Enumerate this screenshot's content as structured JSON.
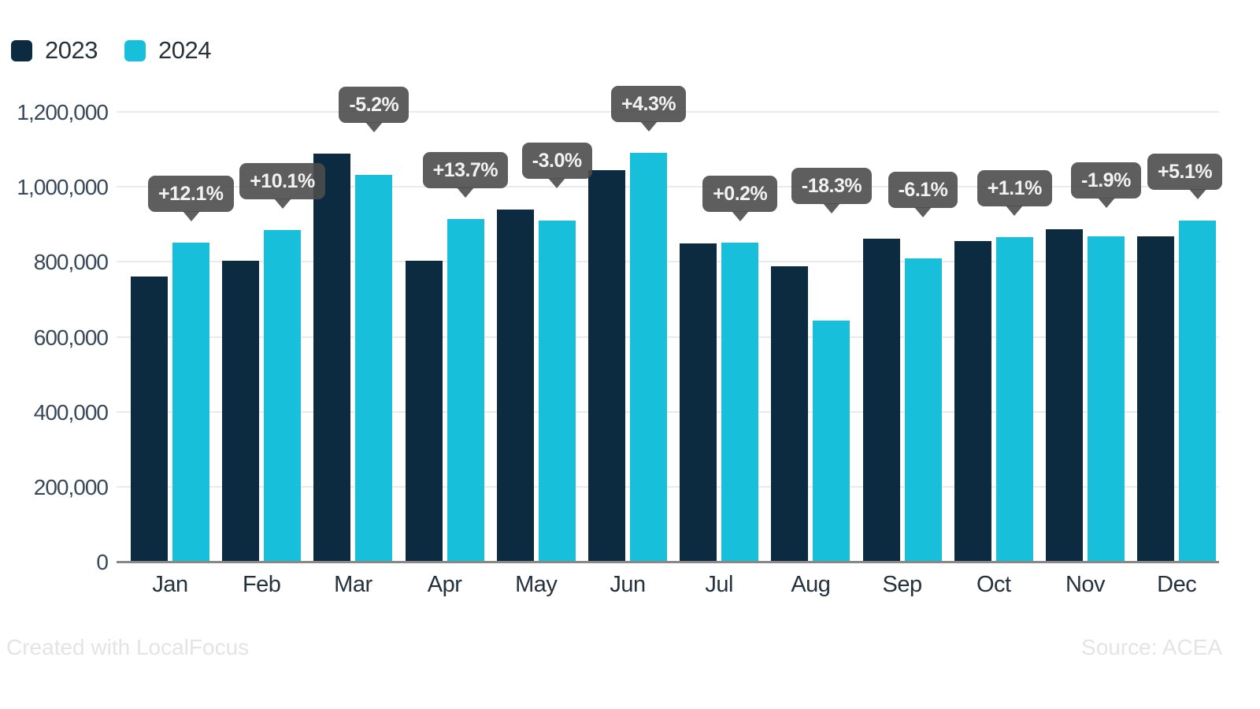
{
  "legend": {
    "items": [
      {
        "label": "2023",
        "color": "#0d2b40"
      },
      {
        "label": "2024",
        "color": "#18bfda"
      }
    ]
  },
  "footer": {
    "credit": "Created with LocalFocus",
    "source": "Source: ACEA"
  },
  "chart_data": {
    "type": "bar",
    "title": "",
    "categories": [
      "Jan",
      "Feb",
      "Mar",
      "Apr",
      "May",
      "Jun",
      "Jul",
      "Aug",
      "Sep",
      "Oct",
      "Nov",
      "Dec"
    ],
    "series": [
      {
        "name": "2023",
        "color": "#0d2b40",
        "values": [
          760000,
          803000,
          1088000,
          803000,
          939000,
          1045000,
          850000,
          788000,
          861000,
          856000,
          886000,
          867000
        ]
      },
      {
        "name": "2024",
        "color": "#18bfda",
        "values": [
          852000,
          884000,
          1032000,
          914000,
          911000,
          1090000,
          852000,
          644000,
          809000,
          866000,
          869000,
          911000
        ]
      }
    ],
    "change_labels": [
      "+12.1%",
      "+10.1%",
      "-5.2%",
      "+13.7%",
      "-3.0%",
      "+4.3%",
      "+0.2%",
      "-18.3%",
      "-6.1%",
      "+1.1%",
      "-1.9%",
      "+5.1%"
    ],
    "ylim": [
      0,
      1200000
    ],
    "yticks": [
      {
        "value": 0,
        "label": "0"
      },
      {
        "value": 200000,
        "label": "200,000"
      },
      {
        "value": 400000,
        "label": "400,000"
      },
      {
        "value": 600000,
        "label": "600,000"
      },
      {
        "value": 800000,
        "label": "800,000"
      },
      {
        "value": 1000000,
        "label": "1,000,000"
      },
      {
        "value": 1200000,
        "label": "1,200,000"
      }
    ],
    "grid": "horizontal",
    "legend_position": "top-left",
    "colors": {
      "tooltip_bg": "#4c4c4c",
      "tooltip_text": "#f2f2f2",
      "gridline": "#eaeaea",
      "axis_line": "#8a8786"
    }
  }
}
